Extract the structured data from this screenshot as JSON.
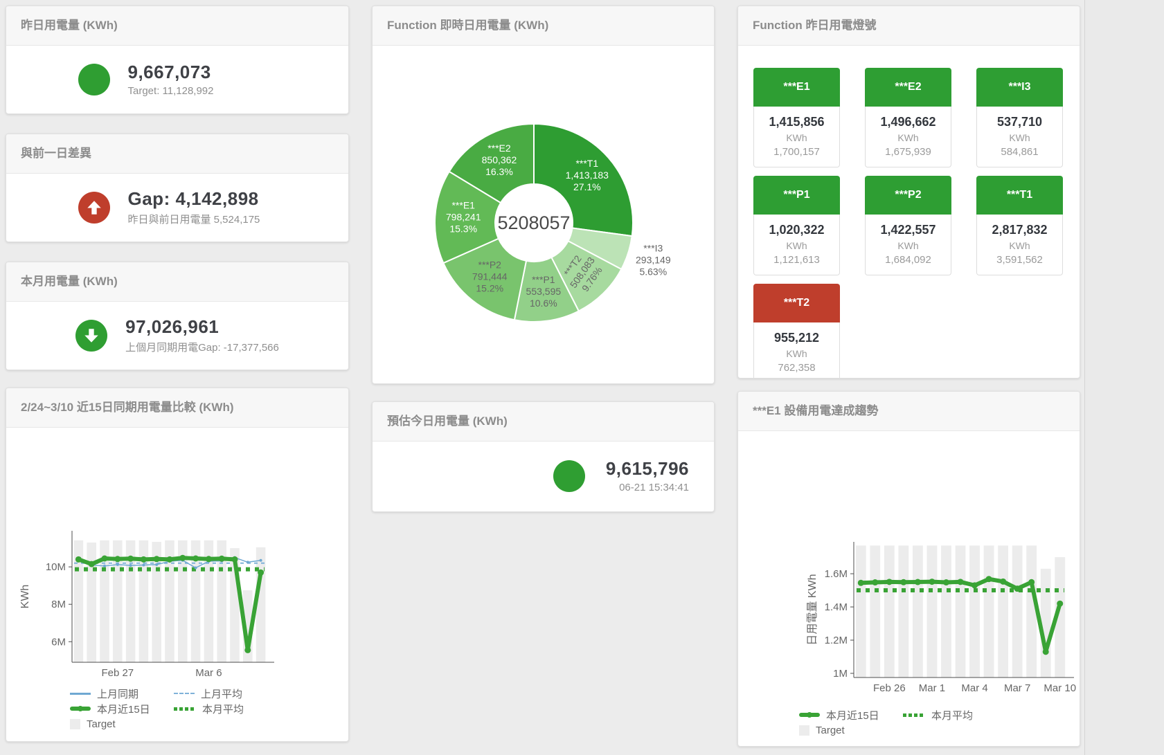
{
  "colors": {
    "green": "#2f9e32",
    "red": "#bf3e2c",
    "tile_green": "#2e9e33",
    "blue": "#6fa8d2",
    "green_line": "#39a335",
    "bar_gray": "#ececec"
  },
  "cards": {
    "yesterday": {
      "title": "昨日用電量 (KWh)",
      "value": "9,667,073",
      "subtitle": "Target: 11,128,992"
    },
    "day_gap": {
      "title": "與前一日差異",
      "value": "Gap: 4,142,898",
      "subtitle": "昨日與前日用電量 5,524,175"
    },
    "month": {
      "title": "本月用電量 (KWh)",
      "value": "97,026,961",
      "subtitle": "上個月同期用電Gap: -17,377,566"
    },
    "estimate": {
      "title": "預估今日用電量 (KWh)",
      "value": "9,615,796",
      "subtitle": "06-21 15:34:41"
    },
    "donut": {
      "title": "Function 即時日用電量 (KWh)"
    },
    "lights": {
      "title": "Function 昨日用電燈號",
      "unit": "KWh",
      "tiles": [
        {
          "label": "***E1",
          "value": "1,415,856",
          "target": "1,700,157",
          "status": "green"
        },
        {
          "label": "***E2",
          "value": "1,496,662",
          "target": "1,675,939",
          "status": "green"
        },
        {
          "label": "***I3",
          "value": "537,710",
          "target": "584,861",
          "status": "green"
        },
        {
          "label": "***P1",
          "value": "1,020,322",
          "target": "1,121,613",
          "status": "green"
        },
        {
          "label": "***P2",
          "value": "1,422,557",
          "target": "1,684,092",
          "status": "green"
        },
        {
          "label": "***T1",
          "value": "2,817,832",
          "target": "3,591,562",
          "status": "green"
        },
        {
          "label": "***T2",
          "value": "955,212",
          "target": "762,358",
          "status": "red"
        }
      ]
    },
    "compare": {
      "title": "2/24~3/10 近15日同期用電量比較 (KWh)"
    },
    "trend": {
      "title": "***E1 設備用電達成趨勢"
    }
  },
  "chart_data": [
    {
      "id": "donut",
      "type": "pie",
      "title": "Function 即時日用電量 (KWh)",
      "center_label": "5208057",
      "total": 5208057,
      "slices": [
        {
          "name": "***T1",
          "value": 1413183,
          "display": "1,413,183",
          "pct": "27.1%",
          "color": "#2e9d32",
          "label_color": "#ffffff"
        },
        {
          "name": "***I3",
          "value": 293149,
          "display": "293,149",
          "pct": "5.63%",
          "color": "#bce3b6",
          "label_color": "#666666",
          "outside": true
        },
        {
          "name": "***T2",
          "value": 508083,
          "display": "508,083",
          "pct": "9.76%",
          "color": "#a7da9f",
          "label_color": "#666666",
          "rotate": -55
        },
        {
          "name": "***P1",
          "value": 553595,
          "display": "553,595",
          "pct": "10.6%",
          "color": "#92d089",
          "label_color": "#666666"
        },
        {
          "name": "***P2",
          "value": 791444,
          "display": "791,444",
          "pct": "15.2%",
          "color": "#79c46d",
          "label_color": "#666666"
        },
        {
          "name": "***E1",
          "value": 798241,
          "display": "798,241",
          "pct": "15.3%",
          "color": "#62ba56",
          "label_color": "#ffffff"
        },
        {
          "name": "***E2",
          "value": 850362,
          "display": "850,362",
          "pct": "16.3%",
          "color": "#49ab43",
          "label_color": "#ffffff"
        }
      ]
    },
    {
      "id": "compare",
      "type": "bar",
      "title": "2/24~3/10 近15日同期用電量比較 (KWh)",
      "ylabel": "KWh",
      "unit": "million KWh",
      "grid": false,
      "legend_position": "bottom",
      "ylim": [
        4.9,
        11.93
      ],
      "yticks": [
        {
          "v": 6,
          "label": "6M"
        },
        {
          "v": 8,
          "label": "8M"
        },
        {
          "v": 10,
          "label": "10M"
        }
      ],
      "xticks": [
        {
          "i": 3,
          "label": "Feb 27"
        },
        {
          "i": 10,
          "label": "Mar 6"
        }
      ],
      "categories": [
        "2/24",
        "2/25",
        "2/26",
        "2/27",
        "2/28",
        "3/1",
        "3/2",
        "3/3",
        "3/4",
        "3/5",
        "3/6",
        "3/7",
        "3/8",
        "3/9",
        "3/10"
      ],
      "series": [
        {
          "name": "Target",
          "type": "bar",
          "color": "#ececec",
          "values": [
            11.42,
            11.3,
            11.42,
            11.42,
            11.42,
            11.42,
            11.34,
            11.42,
            11.42,
            11.42,
            11.42,
            11.42,
            11.0,
            8.75,
            11.05
          ]
        },
        {
          "name": "上月同期",
          "type": "line",
          "color": "#6fa8d2",
          "values": [
            10.45,
            10.1,
            10.05,
            10.12,
            10.08,
            10.1,
            10.12,
            10.3,
            10.35,
            9.95,
            10.3,
            10.32,
            10.5,
            10.25,
            10.35
          ]
        },
        {
          "name": "上月平均",
          "type": "avg-dash",
          "color": "#7fb2d9",
          "value": 10.2
        },
        {
          "name": "本月近15日",
          "type": "line-thick",
          "color": "#39a335",
          "values": [
            10.4,
            10.15,
            10.45,
            10.42,
            10.44,
            10.4,
            10.42,
            10.4,
            10.48,
            10.45,
            10.42,
            10.44,
            10.4,
            5.55,
            9.7
          ]
        },
        {
          "name": "本月平均",
          "type": "avg-dot",
          "color": "#39a335",
          "value": 9.87
        }
      ],
      "legend": [
        [
          {
            "swatch": "line",
            "color": "#6fa8d2",
            "label": "上月同期"
          },
          {
            "swatch": "dash",
            "color": "#7fb2d9",
            "label": "上月平均"
          }
        ],
        [
          {
            "swatch": "thick",
            "color": "#39a335",
            "label": "本月近15日"
          },
          {
            "swatch": "dots",
            "color": "#39a335",
            "label": "本月平均"
          }
        ],
        [
          {
            "swatch": "square",
            "color": "#ececec",
            "label": "Target"
          }
        ]
      ]
    },
    {
      "id": "trend",
      "type": "bar",
      "title": "***E1 設備用電達成趨勢",
      "ylabel": "日用電量 KWh",
      "unit": "million KWh",
      "grid": false,
      "legend_position": "bottom",
      "ylim": [
        0.975,
        1.792
      ],
      "yticks": [
        {
          "v": 1,
          "label": "1M"
        },
        {
          "v": 1.2,
          "label": "1.2M"
        },
        {
          "v": 1.4,
          "label": "1.4M"
        },
        {
          "v": 1.6,
          "label": "1.6M"
        }
      ],
      "xticks": [
        {
          "i": 2,
          "label": "Feb 26"
        },
        {
          "i": 5,
          "label": "Mar 1"
        },
        {
          "i": 8,
          "label": "Mar 4"
        },
        {
          "i": 11,
          "label": "Mar 7"
        },
        {
          "i": 14,
          "label": "Mar 10"
        }
      ],
      "categories": [
        "2/24",
        "2/25",
        "2/26",
        "2/27",
        "2/28",
        "3/1",
        "3/2",
        "3/3",
        "3/4",
        "3/5",
        "3/6",
        "3/7",
        "3/8",
        "3/9",
        "3/10"
      ],
      "series": [
        {
          "name": "Target",
          "type": "bar",
          "color": "#ececec",
          "values": [
            1.77,
            1.77,
            1.77,
            1.77,
            1.77,
            1.77,
            1.77,
            1.77,
            1.77,
            1.77,
            1.77,
            1.77,
            1.77,
            1.63,
            1.7
          ]
        },
        {
          "name": "本月近15日",
          "type": "line-thick",
          "color": "#39a335",
          "values": [
            1.545,
            1.548,
            1.551,
            1.549,
            1.55,
            1.552,
            1.548,
            1.551,
            1.53,
            1.568,
            1.553,
            1.51,
            1.549,
            1.13,
            1.42
          ]
        },
        {
          "name": "本月平均",
          "type": "avg-dot",
          "color": "#39a335",
          "value": 1.5
        }
      ],
      "legend": [
        [
          {
            "swatch": "thick",
            "color": "#39a335",
            "label": "本月近15日"
          },
          {
            "swatch": "dots",
            "color": "#39a335",
            "label": "本月平均"
          }
        ],
        [
          {
            "swatch": "square",
            "color": "#ececec",
            "label": "Target"
          }
        ]
      ]
    }
  ]
}
